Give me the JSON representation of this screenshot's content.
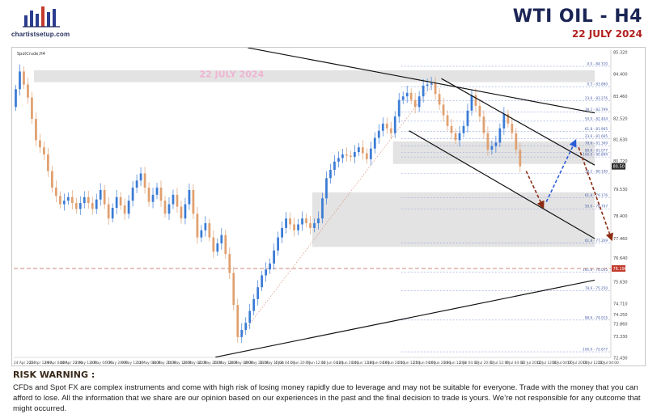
{
  "header": {
    "brand": "chartistsetup.com",
    "title": "WTI OIL  -  H4",
    "date": "22 JULY 2024"
  },
  "chart_data": {
    "type": "line",
    "symbol": "SpotCrude,H4",
    "watermark": "22 JULY 2024",
    "ylim": [
      72.44,
      85.4
    ],
    "y_ticks": [
      85.32,
      84.4,
      83.46,
      82.52,
      81.63,
      80.72,
      79.53,
      78.4,
      77.46,
      76.64,
      75.63,
      74.71,
      74.25,
      73.86,
      73.33,
      72.43
    ],
    "x_tick_labels": [
      "24 Apr 2024",
      "25 Apr 12:00",
      "29 Apr 04:00",
      "30 Apr 20:00",
      "2 May 12:00",
      "6 May 04:00",
      "7 May 20:00",
      "9 May 12:00",
      "13 May 04:00",
      "14 May 20:00",
      "16 May 12:00",
      "20 May 04:00",
      "21 May 20:00",
      "23 May 12:00",
      "28 May 04:00",
      "29 May 20:00",
      "31 May 12:00",
      "4 Jun 04:00",
      "5 Jun 20:00",
      "7 Jun 12:00",
      "11 Jun 04:00",
      "12 Jun 20:00",
      "14 Jun 12:00",
      "18 Jun 04:00",
      "19 Jun 20:00",
      "21 Jun 12:00",
      "25 Jun 04:00",
      "26 Jun 20:00",
      "28 Jun 12:00",
      "2 Jul 04:00",
      "3 Jul 20:00",
      "5 Jul 12:00",
      "9 Jul 04:00",
      "10 Jul 20:00",
      "12 Jul 12:00",
      "16 Jul 04:00",
      "17 Jul 20:00",
      "19 Jul 12:00",
      "23 Jul 04:00"
    ],
    "price_path": [
      {
        "i": 0,
        "p": 83.0
      },
      {
        "i": 2,
        "p": 84.5
      },
      {
        "i": 4,
        "p": 83.4
      },
      {
        "i": 6,
        "p": 81.6
      },
      {
        "i": 8,
        "p": 81.0
      },
      {
        "i": 10,
        "p": 79.6
      },
      {
        "i": 12,
        "p": 78.9
      },
      {
        "i": 14,
        "p": 79.2
      },
      {
        "i": 16,
        "p": 78.7
      },
      {
        "i": 18,
        "p": 79.2
      },
      {
        "i": 20,
        "p": 78.7
      },
      {
        "i": 22,
        "p": 79.5
      },
      {
        "i": 24,
        "p": 78.3
      },
      {
        "i": 26,
        "p": 79.2
      },
      {
        "i": 28,
        "p": 78.5
      },
      {
        "i": 30,
        "p": 79.6
      },
      {
        "i": 32,
        "p": 80.2
      },
      {
        "i": 34,
        "p": 79.0
      },
      {
        "i": 36,
        "p": 79.6
      },
      {
        "i": 38,
        "p": 78.5
      },
      {
        "i": 40,
        "p": 79.3
      },
      {
        "i": 42,
        "p": 78.3
      },
      {
        "i": 44,
        "p": 79.5
      },
      {
        "i": 46,
        "p": 77.5
      },
      {
        "i": 48,
        "p": 78.1
      },
      {
        "i": 50,
        "p": 76.9
      },
      {
        "i": 52,
        "p": 77.6
      },
      {
        "i": 54,
        "p": 76.0
      },
      {
        "i": 56,
        "p": 73.3
      },
      {
        "i": 58,
        "p": 73.9
      },
      {
        "i": 60,
        "p": 74.9
      },
      {
        "i": 62,
        "p": 75.9
      },
      {
        "i": 64,
        "p": 76.4
      },
      {
        "i": 66,
        "p": 77.5
      },
      {
        "i": 68,
        "p": 78.3
      },
      {
        "i": 70,
        "p": 77.8
      },
      {
        "i": 72,
        "p": 78.3
      },
      {
        "i": 74,
        "p": 77.9
      },
      {
        "i": 76,
        "p": 78.3
      },
      {
        "i": 78,
        "p": 80.0
      },
      {
        "i": 80,
        "p": 80.7
      },
      {
        "i": 82,
        "p": 81.0
      },
      {
        "i": 84,
        "p": 80.9
      },
      {
        "i": 86,
        "p": 81.3
      },
      {
        "i": 88,
        "p": 80.8
      },
      {
        "i": 90,
        "p": 81.7
      },
      {
        "i": 92,
        "p": 82.3
      },
      {
        "i": 94,
        "p": 81.9
      },
      {
        "i": 96,
        "p": 83.3
      },
      {
        "i": 98,
        "p": 83.6
      },
      {
        "i": 100,
        "p": 83.0
      },
      {
        "i": 102,
        "p": 83.9
      },
      {
        "i": 104,
        "p": 84.0
      },
      {
        "i": 106,
        "p": 83.1
      },
      {
        "i": 108,
        "p": 82.2
      },
      {
        "i": 110,
        "p": 81.6
      },
      {
        "i": 112,
        "p": 82.2
      },
      {
        "i": 114,
        "p": 83.5
      },
      {
        "i": 116,
        "p": 82.6
      },
      {
        "i": 118,
        "p": 81.2
      },
      {
        "i": 120,
        "p": 81.5
      },
      {
        "i": 122,
        "p": 82.7
      },
      {
        "i": 124,
        "p": 81.9
      },
      {
        "i": 126,
        "p": 80.5
      }
    ],
    "last_price": 80.5,
    "fib_levels": [
      {
        "label": "0.0 - 84.720",
        "p": 84.72
      },
      {
        "label": "0.5 - 83.860",
        "p": 83.86
      },
      {
        "label": "23.6 - 83.276",
        "p": 83.276
      },
      {
        "label": "38.2 - 82.799",
        "p": 82.799
      },
      {
        "label": "50.0 - 82.404",
        "p": 82.404
      },
      {
        "label": "61.8 - 81.965",
        "p": 81.965
      },
      {
        "label": "23.6 - 81.665",
        "p": 81.665
      },
      {
        "label": "78.6 - 81.369",
        "p": 81.369
      },
      {
        "label": "88.6 - 81.077",
        "p": 81.077
      },
      {
        "label": "100.0 - 80.894",
        "p": 80.894
      },
      {
        "label": "38.2 - 80.190",
        "p": 80.19
      },
      {
        "label": "61.8 - 79.176",
        "p": 79.176
      },
      {
        "label": "50.0 - 78.707",
        "p": 78.707
      },
      {
        "label": "61.8 - 77.269",
        "p": 77.269
      },
      {
        "label": "161.8 - 76.035",
        "p": 76.035
      },
      {
        "label": "78.6 - 75.250",
        "p": 75.25
      },
      {
        "label": "88.6 - 74.015",
        "p": 74.015
      },
      {
        "label": "100.0 - 72.677",
        "p": 72.677
      }
    ],
    "red_level": {
      "label": "76.190",
      "p": 76.19
    },
    "zones": [
      {
        "i0": 5,
        "i1": 144,
        "p_lo": 84.05,
        "p_hi": 84.55
      },
      {
        "i0": 94,
        "i1": 144,
        "p_lo": 80.6,
        "p_hi": 81.55
      },
      {
        "i0": 74,
        "i1": 144,
        "p_lo": 77.1,
        "p_hi": 79.4
      }
    ],
    "trendlines": [
      {
        "i0": 58,
        "p0": 85.5,
        "i1": 144,
        "p1": 82.75
      },
      {
        "i0": 106,
        "p0": 84.2,
        "i1": 144,
        "p1": 80.55
      },
      {
        "i0": 98,
        "p0": 82.0,
        "i1": 144,
        "p1": 77.45
      },
      {
        "i0": 50,
        "p0": 72.45,
        "i1": 144,
        "p1": 75.7
      }
    ],
    "arrows": [
      {
        "color": "#8b2a12",
        "i0": 127,
        "p0": 80.3,
        "i1": 131,
        "p1": 78.85
      },
      {
        "color": "#2a5bd7",
        "i0": 132,
        "p0": 79.0,
        "i1": 139,
        "p1": 81.5
      },
      {
        "color": "#8b2a12",
        "i0": 140,
        "p0": 81.3,
        "i1": 148,
        "p1": 77.5
      }
    ]
  },
  "risk": {
    "title": "RISK WARNING :",
    "text": "CFDs and Spot FX are complex instruments and come with high risk of losing money rapidly due to leverage and may not be suitable for everyone. Trade with the money that you can afford to lose. All the information that we share are our opinion based on our experiences in the past and the final decision to trade is yours. We’re not responsible for any outcome that might occurred."
  }
}
